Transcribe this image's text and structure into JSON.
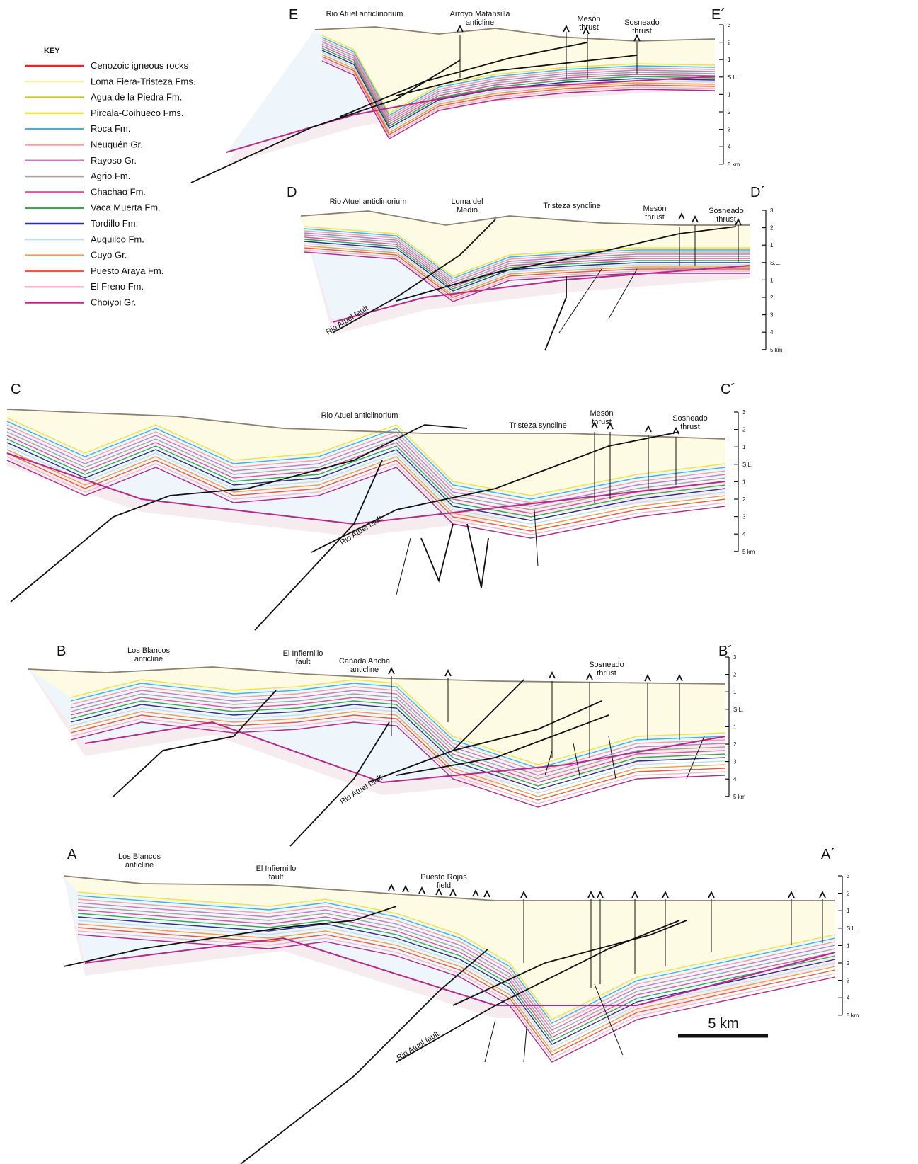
{
  "key": {
    "title": "KEY",
    "items": [
      {
        "name": "Cenozoic igneous rocks",
        "color": "#e8262a"
      },
      {
        "name": "Loma Fiera-Tristeza Fms.",
        "color": "#f7f2a6"
      },
      {
        "name": "Agua de la Piedra Fm.",
        "color": "#c8c23a"
      },
      {
        "name": "Pircala-Coihueco Fms.",
        "color": "#f4e33a"
      },
      {
        "name": "Roca Fm.",
        "color": "#3db4e0"
      },
      {
        "name": "Neuquén Gr.",
        "color": "#f1a19e"
      },
      {
        "name": "Rayoso Gr.",
        "color": "#c47bbf"
      },
      {
        "name": "Agrio Fm.",
        "color": "#a9a39b"
      },
      {
        "name": "Chachao Fm.",
        "color": "#df559a"
      },
      {
        "name": "Vaca Muerta Fm.",
        "color": "#3aa84a"
      },
      {
        "name": "Tordillo Fm.",
        "color": "#2b2f8f"
      },
      {
        "name": "Auquilco Fm.",
        "color": "#bfe0e6"
      },
      {
        "name": "Cuyo Gr.",
        "color": "#f39b4a"
      },
      {
        "name": "Puesto Araya Fm.",
        "color": "#ee5a3a"
      },
      {
        "name": "El Freno Fm.",
        "color": "#f5b7cc"
      },
      {
        "name": "Choiyoi Gr.",
        "color": "#b8288a"
      }
    ]
  },
  "depth_scale": [
    "3",
    "2",
    "1",
    "S.L.",
    "1",
    "2",
    "3",
    "4",
    "5 km"
  ],
  "sections": [
    {
      "start": "E",
      "end": "E´",
      "labels": [
        [
          "Rio Atuel anticlinorium"
        ],
        [
          "Arroyo Matansilla",
          "anticline"
        ],
        [
          "Mesón",
          "thrust"
        ],
        [
          "Sosneado",
          "thrust"
        ]
      ]
    },
    {
      "start": "D",
      "end": "D´",
      "labels": [
        [
          "Rio Atuel anticlinorium"
        ],
        [
          "Loma del",
          "Medio"
        ],
        [
          "Tristeza syncline"
        ],
        [
          "Mesón",
          "thrust"
        ],
        [
          "Sosneado",
          "thrust"
        ],
        [
          "Rio Atuel fault"
        ]
      ]
    },
    {
      "start": "C",
      "end": "C´",
      "labels": [
        [
          "Rio Atuel anticlinorium"
        ],
        [
          "Tristeza syncline"
        ],
        [
          "Mesón",
          "thrust"
        ],
        [
          "Sosneado",
          "thrust"
        ],
        [
          "Rio Atuel fault"
        ]
      ]
    },
    {
      "start": "B",
      "end": "B´",
      "labels": [
        [
          "Los Blancos",
          "anticline"
        ],
        [
          "El Infiernillo",
          "fault"
        ],
        [
          "Cañada Ancha",
          "anticline"
        ],
        [
          "Sosneado",
          "thrust"
        ],
        [
          "Rio Atuel fault"
        ]
      ]
    },
    {
      "start": "A",
      "end": "A´",
      "labels": [
        [
          "Los Blancos",
          "anticline"
        ],
        [
          "El Infiernillo",
          "fault"
        ],
        [
          "Puesto Rojas",
          "field"
        ],
        [
          "Rio Atuel fault"
        ]
      ]
    }
  ],
  "scale_bar": "5 km"
}
